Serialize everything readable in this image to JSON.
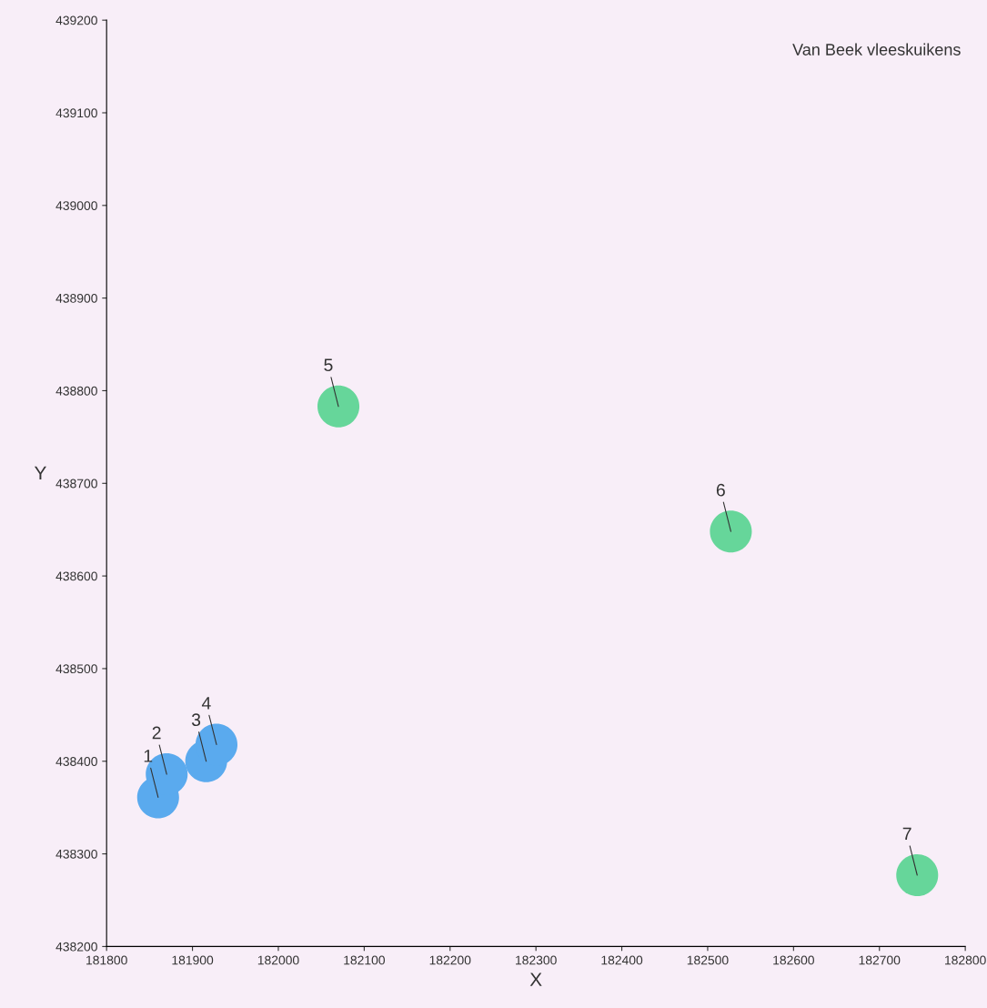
{
  "chart_data": {
    "type": "scatter",
    "title": "Van Beek vleeskuikens",
    "xlabel": "X",
    "ylabel": "Y",
    "xlim": [
      181800,
      182800
    ],
    "xticks": [
      181800,
      181900,
      182000,
      182100,
      182200,
      182300,
      182400,
      182500,
      182600,
      182700,
      182800
    ],
    "ylim": [
      438200,
      439200
    ],
    "yticks": [
      438200,
      438300,
      438400,
      438500,
      438600,
      438700,
      438800,
      438900,
      439000,
      439100,
      439200
    ],
    "marker": "circle",
    "grid": false,
    "legend": false,
    "series": [
      {
        "color": "#5aaaee",
        "x": [
          181860,
          181870,
          181916,
          181928
        ],
        "values": [
          438361,
          438386,
          438400,
          438418
        ]
      },
      {
        "color": "#66d69a",
        "x": [
          182070,
          182527,
          182744
        ],
        "values": [
          438783,
          438648,
          438277
        ]
      }
    ],
    "annotations": [
      {
        "text": "1",
        "x": 181860,
        "y": 438361
      },
      {
        "text": "2",
        "x": 181870,
        "y": 438386
      },
      {
        "text": "3",
        "x": 181916,
        "y": 438400
      },
      {
        "text": "4",
        "x": 181928,
        "y": 438418
      },
      {
        "text": "5",
        "x": 182070,
        "y": 438783
      },
      {
        "text": "6",
        "x": 182527,
        "y": 438648
      },
      {
        "text": "7",
        "x": 182744,
        "y": 438277
      }
    ]
  }
}
